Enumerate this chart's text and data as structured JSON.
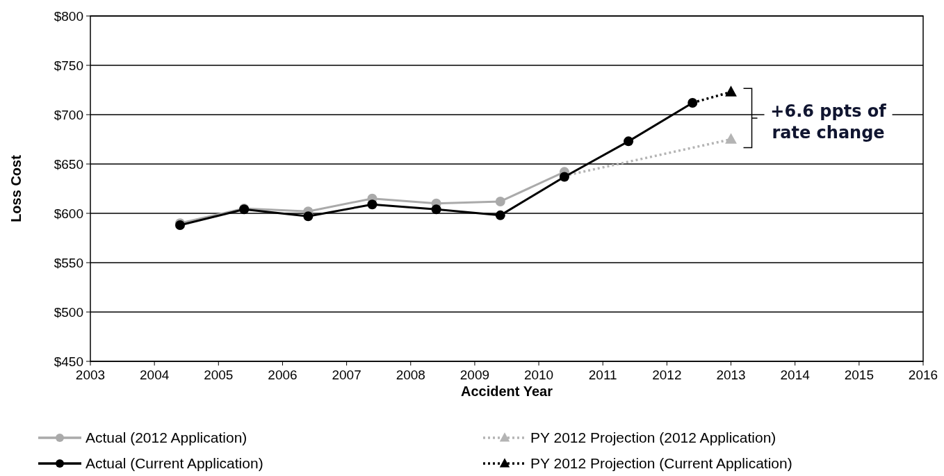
{
  "chart_data": {
    "type": "line",
    "xlabel": "Accident Year",
    "ylabel": "Loss Cost",
    "xlim": [
      2003,
      2016
    ],
    "xticks": [
      2003,
      2004,
      2005,
      2006,
      2007,
      2008,
      2009,
      2010,
      2011,
      2012,
      2013,
      2014,
      2015,
      2016
    ],
    "ylim": [
      450,
      800
    ],
    "yticks": [
      {
        "value": 450,
        "label": "$450"
      },
      {
        "value": 500,
        "label": "$500"
      },
      {
        "value": 550,
        "label": "$550"
      },
      {
        "value": 600,
        "label": "$600"
      },
      {
        "value": 650,
        "label": "$650"
      },
      {
        "value": 700,
        "label": "$700"
      },
      {
        "value": 750,
        "label": "$750"
      },
      {
        "value": 800,
        "label": "$800"
      }
    ],
    "grid": "y",
    "legend": "bottom",
    "series": [
      {
        "name": "Actual (2012 Application)",
        "color": "#aaaaaa",
        "marker": "circle",
        "line_style": "solid",
        "x": [
          2004.4,
          2005.4,
          2006.4,
          2007.4,
          2008.4,
          2009.4,
          2010.4
        ],
        "values": [
          590,
          605,
          602,
          615,
          610,
          612,
          642
        ]
      },
      {
        "name": "PY 2012 Projection (2012 Application)",
        "color": "#b4b4b4",
        "marker": "triangle",
        "line_style": "dotted",
        "x": [
          2010.4,
          2013
        ],
        "values": [
          638,
          675
        ]
      },
      {
        "name": "Actual (Current Application)",
        "color": "#000000",
        "marker": "circle",
        "line_style": "solid",
        "x": [
          2004.4,
          2005.4,
          2006.4,
          2007.4,
          2008.4,
          2009.4,
          2010.4,
          2011.4,
          2012.4
        ],
        "values": [
          588,
          604,
          597,
          609,
          604,
          598,
          637,
          673,
          712
        ]
      },
      {
        "name": "PY 2012 Projection (Current Application)",
        "color": "#000000",
        "marker": "triangle",
        "line_style": "dotted",
        "x": [
          2012.4,
          2013
        ],
        "values": [
          712,
          723
        ]
      }
    ],
    "annotations": [
      "+6.6 ppts of rate change"
    ]
  }
}
